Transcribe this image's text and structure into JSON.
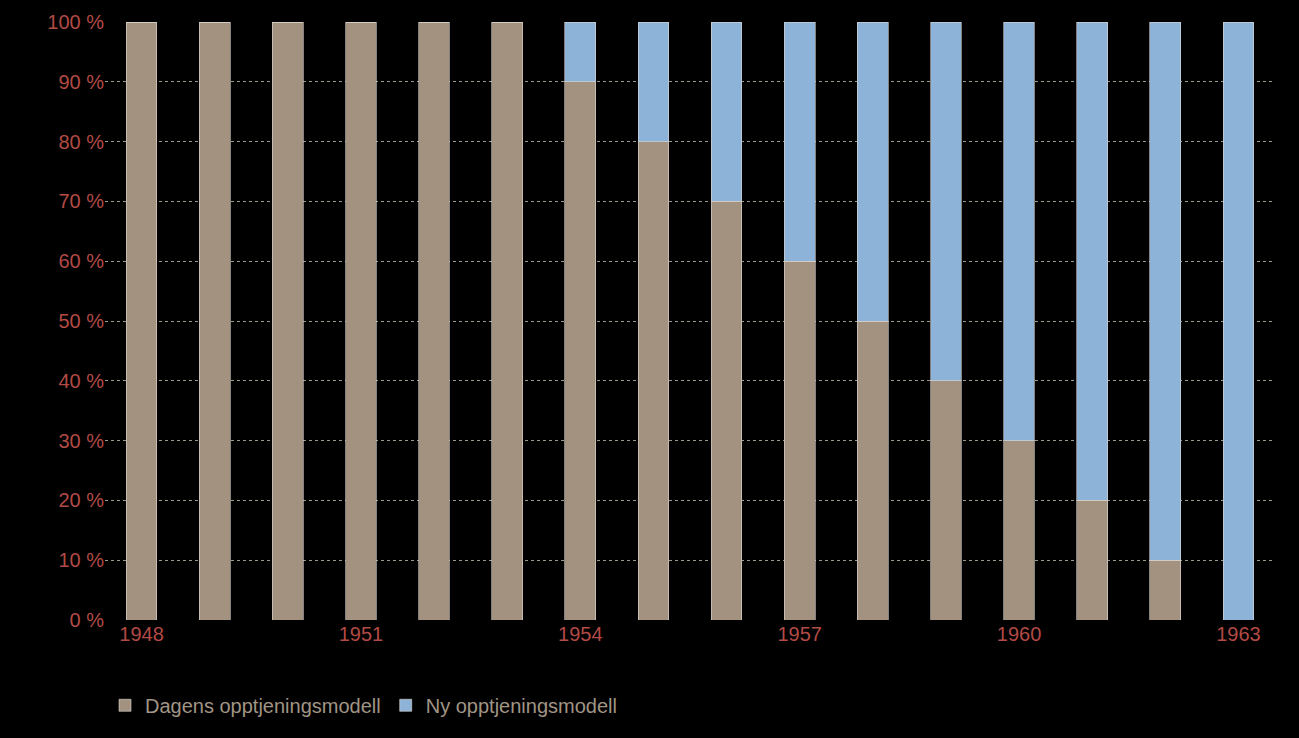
{
  "chart_data": {
    "type": "bar",
    "stacked": true,
    "grid": true,
    "legend": "bottom left",
    "categories": [
      "1948",
      null,
      null,
      "1951",
      null,
      null,
      "1954",
      null,
      null,
      "1957",
      null,
      null,
      "1960",
      null,
      null,
      "1963"
    ],
    "series": [
      {
        "name": "Dagens opptjeningsmodell",
        "color": "#a39280",
        "values": [
          100,
          100,
          100,
          100,
          100,
          100,
          90,
          80,
          70,
          60,
          50,
          40,
          30,
          20,
          10,
          0
        ]
      },
      {
        "name": "Ny opptjeningsmodell",
        "color": "#8db3d9",
        "values": [
          0,
          0,
          0,
          0,
          0,
          0,
          10,
          20,
          30,
          40,
          50,
          60,
          70,
          80,
          90,
          100
        ]
      }
    ],
    "ylim": [
      0,
      100
    ],
    "yticks": [
      {
        "value": 0,
        "label": "0 %"
      },
      {
        "value": 10,
        "label": "10 %"
      },
      {
        "value": 20,
        "label": "20 %"
      },
      {
        "value": 30,
        "label": "30 %"
      },
      {
        "value": 40,
        "label": "40 %"
      },
      {
        "value": 50,
        "label": "50 %"
      },
      {
        "value": 60,
        "label": "60 %"
      },
      {
        "value": 70,
        "label": "70 %"
      },
      {
        "value": 80,
        "label": "80 %"
      },
      {
        "value": 90,
        "label": "90 %"
      },
      {
        "value": 100,
        "label": "100 %"
      }
    ]
  }
}
